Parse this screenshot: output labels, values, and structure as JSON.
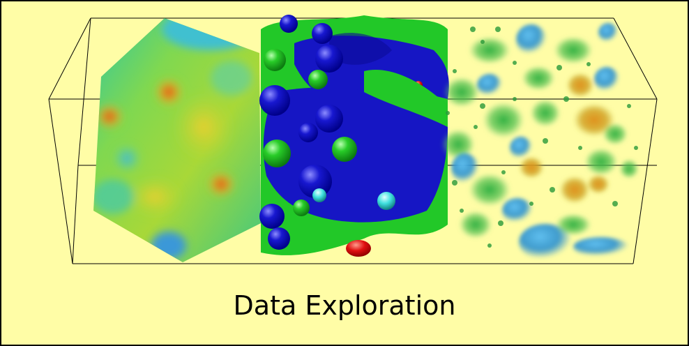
{
  "caption": "Data Exploration",
  "colors": {
    "background": "#fffda6",
    "surface_blue": "#1010c8",
    "surface_green": "#22c828",
    "highlight_red": "#e01010",
    "highlight_cyan": "#40e8e8",
    "volume_orange": "#d8901a",
    "volume_blue": "#2c9ad8"
  },
  "panels": [
    "slice-colormap",
    "isosurface",
    "volume-rendering"
  ]
}
